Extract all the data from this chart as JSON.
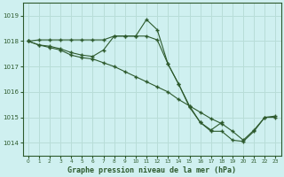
{
  "title": "Graphe pression niveau de la mer (hPa)",
  "background_color": "#cff0f0",
  "grid_color": "#b8ddd8",
  "line_color": "#2d5a2d",
  "ylim": [
    1013.5,
    1019.5
  ],
  "yticks": [
    1014,
    1015,
    1016,
    1017,
    1018,
    1019
  ],
  "xlim": [
    -0.5,
    23.5
  ],
  "xticks": [
    0,
    1,
    2,
    3,
    4,
    5,
    6,
    7,
    8,
    9,
    10,
    11,
    12,
    13,
    14,
    15,
    16,
    17,
    18,
    19,
    20,
    21,
    22,
    23
  ],
  "series1_x": [
    0,
    1,
    2,
    3,
    4,
    5,
    6,
    7,
    8,
    9,
    10,
    11,
    12,
    13,
    14,
    15,
    16,
    17,
    18,
    19,
    20,
    21,
    22,
    23
  ],
  "series1_y": [
    1018.0,
    1018.05,
    1018.05,
    1018.05,
    1018.05,
    1018.05,
    1018.05,
    1018.05,
    1018.2,
    1018.2,
    1018.2,
    1018.2,
    1018.05,
    1017.1,
    1016.3,
    1015.4,
    1014.8,
    1014.45,
    1014.45,
    1014.1,
    1014.05,
    1014.45,
    1015.0,
    1015.0
  ],
  "series2_x": [
    0,
    1,
    2,
    3,
    4,
    5,
    6,
    7,
    8,
    9,
    10,
    11,
    12,
    13,
    14,
    15,
    16,
    17,
    18
  ],
  "series2_y": [
    1018.0,
    1017.85,
    1017.8,
    1017.7,
    1017.55,
    1017.45,
    1017.4,
    1017.65,
    1018.2,
    1018.2,
    1018.2,
    1018.85,
    1018.45,
    1017.1,
    1016.3,
    1015.45,
    1014.8,
    1014.5,
    1014.8
  ],
  "series3_x": [
    0,
    1,
    2,
    3,
    4,
    5,
    6,
    7,
    8,
    9,
    10,
    11,
    12,
    13,
    14,
    15,
    16,
    17,
    18,
    19,
    20,
    21,
    22,
    23
  ],
  "series3_y": [
    1018.0,
    1017.85,
    1017.75,
    1017.65,
    1017.45,
    1017.35,
    1017.3,
    1017.15,
    1017.0,
    1016.8,
    1016.6,
    1016.4,
    1016.2,
    1016.0,
    1015.7,
    1015.45,
    1015.2,
    1014.95,
    1014.75,
    1014.45,
    1014.1,
    1014.5,
    1015.0,
    1015.05
  ]
}
